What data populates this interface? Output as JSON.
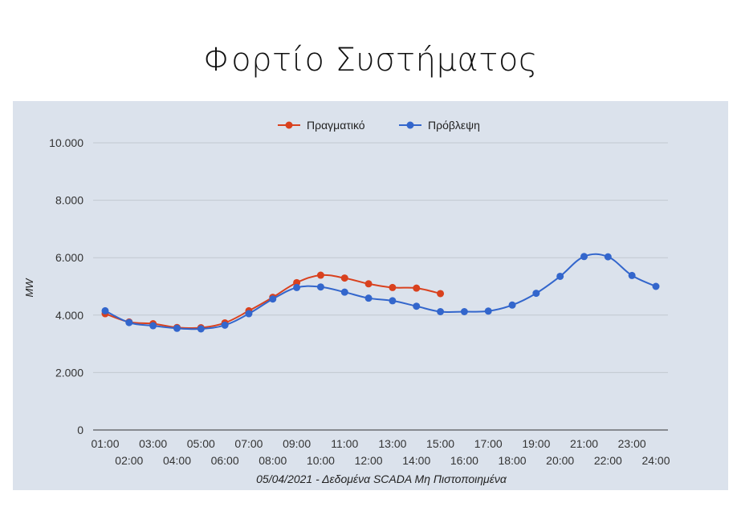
{
  "chart_data": {
    "type": "line",
    "title": "Φορτίο Συστήματος",
    "xlabel": "05/04/2021 - Δεδομένα SCADA Μη Πιστοποιημένα",
    "ylabel": "MW",
    "ylim": [
      0,
      10000
    ],
    "yticks": [
      "0",
      "2.000",
      "4.000",
      "6.000",
      "8.000",
      "10.000"
    ],
    "ytick_values": [
      0,
      2000,
      4000,
      6000,
      8000,
      10000
    ],
    "categories": [
      "01:00",
      "02:00",
      "03:00",
      "04:00",
      "05:00",
      "06:00",
      "07:00",
      "08:00",
      "09:00",
      "10:00",
      "11:00",
      "12:00",
      "13:00",
      "14:00",
      "15:00",
      "16:00",
      "17:00",
      "18:00",
      "19:00",
      "20:00",
      "21:00",
      "22:00",
      "23:00",
      "24:00"
    ],
    "legend_position": "top",
    "grid": true,
    "series": [
      {
        "name": "Πραγματικό",
        "color": "#d9411e",
        "values": [
          4050,
          3760,
          3700,
          3570,
          3560,
          3730,
          4150,
          4620,
          5130,
          5390,
          5290,
          5090,
          4960,
          4940,
          4750,
          null,
          null,
          null,
          null,
          null,
          null,
          null,
          null,
          null
        ]
      },
      {
        "name": "Πρόβλεψη",
        "color": "#3366cc",
        "values": [
          4150,
          3740,
          3630,
          3540,
          3520,
          3650,
          4050,
          4560,
          4960,
          4980,
          4800,
          4590,
          4500,
          4310,
          4120,
          4120,
          4140,
          4350,
          4760,
          5350,
          6040,
          6030,
          5380,
          5000
        ]
      }
    ]
  }
}
